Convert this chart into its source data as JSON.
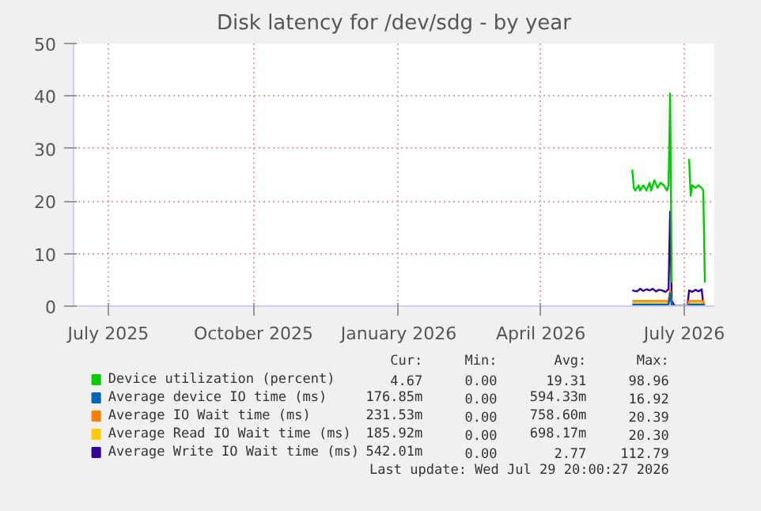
{
  "chart_data": {
    "type": "line",
    "title": "Disk latency for /dev/sdg - by year",
    "xlim": [
      "2025-06-09",
      "2026-07-20"
    ],
    "xticks": [
      {
        "value": "2025-07-01",
        "label": "July 2025"
      },
      {
        "value": "2025-10-01",
        "label": "October 2025"
      },
      {
        "value": "2026-01-01",
        "label": "January 2026"
      },
      {
        "value": "2026-04-01",
        "label": "April 2026"
      },
      {
        "value": "2026-07-01",
        "label": "July 2026"
      }
    ],
    "ylim": [
      0,
      50
    ],
    "yticks": [
      0,
      10,
      20,
      30,
      40,
      50
    ],
    "grid": true,
    "legend": "bottom",
    "marker": "none",
    "line_style": "solid",
    "series": [
      {
        "name": "Device utilization (percent)",
        "color": "#00cc00",
        "x": [
          "2026-05-29",
          "2026-05-30",
          "2026-05-31",
          "2026-06-02",
          "2026-06-03",
          "2026-06-05",
          "2026-06-07",
          "2026-06-09",
          "2026-06-10",
          "2026-06-12",
          "2026-06-14",
          "2026-06-16",
          "2026-06-18",
          "2026-06-20",
          "2026-06-21",
          "2026-06-22",
          "2026-06-23",
          "2026-06-24",
          "2026-07-04",
          "2026-07-05",
          "2026-07-06",
          "2026-07-08",
          "2026-07-10",
          "2026-07-12",
          "2026-07-13",
          "2026-07-14"
        ],
        "values": [
          26,
          22.5,
          22,
          23,
          22,
          23,
          22,
          23.5,
          22,
          24,
          22.5,
          23.5,
          23,
          22,
          23,
          40.5,
          4.5,
          null,
          28,
          21,
          23,
          22.5,
          23,
          22.5,
          22,
          4.5
        ]
      },
      {
        "name": "Average device IO time (ms)",
        "color": "#0066b3",
        "x": [
          "2026-05-29",
          "2026-06-21",
          "2026-06-22",
          "2026-06-23",
          "2026-06-25",
          "2026-07-03",
          "2026-07-04",
          "2026-07-13",
          "2026-07-14"
        ],
        "values": [
          0.3,
          0.3,
          2.5,
          0.2,
          0,
          0,
          0.3,
          0.3,
          0
        ]
      },
      {
        "name": "Average IO Wait time (ms)",
        "color": "#ff8000",
        "x": [
          "2026-05-29",
          "2026-06-21",
          "2026-06-22",
          "2026-06-23",
          "2026-06-25",
          "2026-07-03",
          "2026-07-04",
          "2026-07-13",
          "2026-07-14"
        ],
        "values": [
          1,
          1,
          3,
          0.3,
          0,
          0,
          1,
          1,
          0
        ]
      },
      {
        "name": "Average Read IO Wait time (ms)",
        "color": "#ffcc00",
        "x": [
          "2026-05-29",
          "2026-06-21",
          "2026-06-22",
          "2026-06-23",
          "2026-06-25",
          "2026-07-03",
          "2026-07-04",
          "2026-07-13",
          "2026-07-14"
        ],
        "values": [
          0.7,
          0.7,
          2.8,
          0.3,
          0,
          0,
          0.7,
          0.7,
          0
        ]
      },
      {
        "name": "Average Write IO Wait time (ms)",
        "color": "#330099",
        "x": [
          "2026-05-29",
          "2026-06-01",
          "2026-06-03",
          "2026-06-05",
          "2026-06-07",
          "2026-06-09",
          "2026-06-11",
          "2026-06-13",
          "2026-06-15",
          "2026-06-17",
          "2026-06-19",
          "2026-06-21",
          "2026-06-22",
          "2026-06-23",
          "2026-06-25",
          "2026-07-03",
          "2026-07-04",
          "2026-07-06",
          "2026-07-08",
          "2026-07-10",
          "2026-07-12",
          "2026-07-13",
          "2026-07-14"
        ],
        "values": [
          3,
          2.8,
          3.3,
          2.9,
          3.2,
          3,
          3.3,
          2.8,
          3.1,
          3,
          2.7,
          3.2,
          18,
          1,
          0,
          0,
          3,
          2.7,
          3.1,
          2.8,
          3.2,
          0.3,
          0
        ]
      }
    ],
    "annotations": [
      "Cur:",
      "Min:",
      "Avg:",
      "Max:",
      "4.67",
      "0.00",
      "19.31",
      "98.96",
      "176.85m",
      "0.00",
      "594.33m",
      "16.92",
      "231.53m",
      "0.00",
      "758.60m",
      "20.39",
      "185.92m",
      "0.00",
      "698.17m",
      "20.30",
      "542.01m",
      "0.00",
      "2.77",
      "112.79",
      "Last update: Wed Jul 29 20:00:27 2026"
    ]
  }
}
